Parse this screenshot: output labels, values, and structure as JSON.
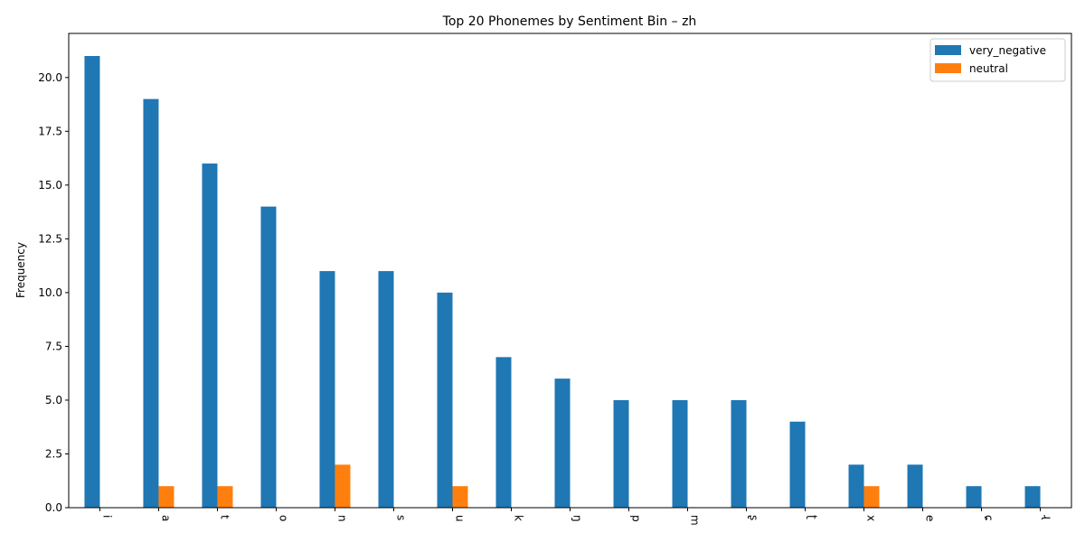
{
  "chart_data": {
    "type": "bar",
    "title": "Top 20 Phonemes by Sentiment Bin – zh",
    "xlabel": "",
    "ylabel": "Frequency",
    "ylim": [
      0,
      22.05
    ],
    "yticks": [
      "0.0",
      "2.5",
      "5.0",
      "7.5",
      "10.0",
      "12.5",
      "15.0",
      "17.5",
      "20.0"
    ],
    "categories": [
      "i",
      "a",
      "t",
      "o",
      "n",
      "s",
      "u",
      "k",
      "ŋ",
      "p",
      "m",
      "ʂ",
      "ʈ",
      "x",
      "e",
      "ɕ",
      "ɻ"
    ],
    "series": [
      {
        "name": "very_negative",
        "color": "#1f77b4",
        "values": [
          21,
          19,
          16,
          14,
          11,
          11,
          10,
          7,
          6,
          5,
          5,
          5,
          4,
          2,
          2,
          1,
          1
        ]
      },
      {
        "name": "neutral",
        "color": "#ff7f0e",
        "values": [
          0,
          1,
          1,
          0,
          2,
          0,
          1,
          0,
          0,
          0,
          0,
          0,
          0,
          1,
          0,
          0,
          0
        ]
      }
    ],
    "legend_position": "top-right",
    "grid": false
  }
}
